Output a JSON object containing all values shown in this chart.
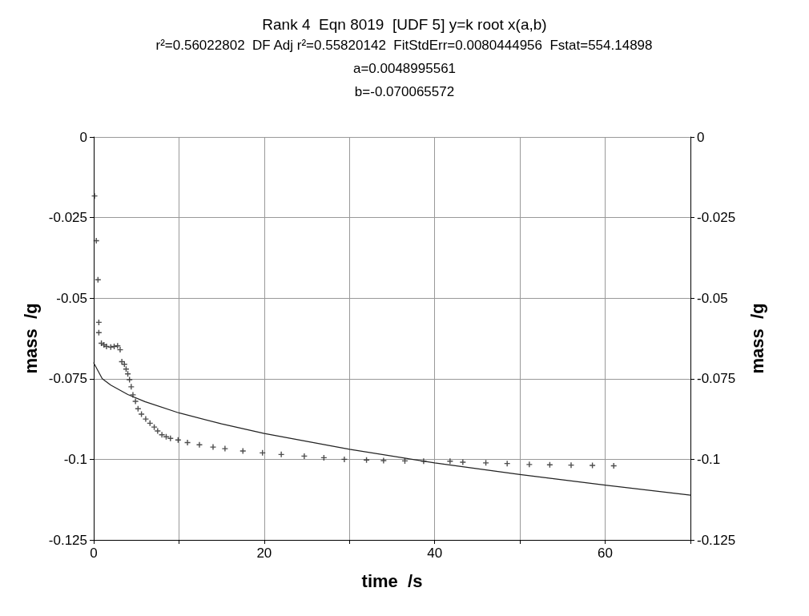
{
  "chart_data": {
    "type": "scatter",
    "title": "Rank 4  Eqn 8019  [UDF 5] y=k root x(a,b)",
    "subtitle": "r²=0.56022802  DF Adj r²=0.55820142  FitStdErr=0.0080444956  Fstat=554.14898",
    "annotations": [
      "a=0.0048995561",
      "b=-0.070065572"
    ],
    "xlabel": "time  /s",
    "ylabel": "mass  /g",
    "y2label": "mass  /g",
    "xlim": [
      0,
      70
    ],
    "xticks": [
      0,
      {
        "value": 10,
        "label": null
      },
      20,
      {
        "value": 30,
        "label": null
      },
      40,
      {
        "value": 50,
        "label": null
      },
      60,
      {
        "value": 70,
        "label": null
      }
    ],
    "ylim": [
      -0.125,
      0
    ],
    "yticks": [
      -0.125,
      -0.1,
      -0.075,
      -0.05,
      -0.025,
      0
    ],
    "y2lim": [
      -0.125,
      0
    ],
    "y2ticks": [
      -0.125,
      -0.1,
      -0.075,
      -0.05,
      -0.025,
      0
    ],
    "grid": true,
    "series": [
      {
        "marker": "cross",
        "color": "#222222",
        "x": [
          0.1,
          0.3,
          0.5,
          0.6,
          0.6,
          0.9,
          1.2,
          1.5,
          2.0,
          2.4,
          2.8,
          3.1,
          3.3,
          3.6,
          3.8,
          4.0,
          4.2,
          4.4,
          4.6,
          4.9,
          5.2,
          5.6,
          6.1,
          6.6,
          7.1,
          7.5,
          8.0,
          8.5,
          9.0,
          9.9,
          11.0,
          12.4,
          14.0,
          15.4,
          17.5,
          19.8,
          22.0,
          24.7,
          27.0,
          29.4,
          32.0,
          34.0,
          36.5,
          38.7,
          41.8,
          43.3,
          46.0,
          48.5,
          51.1,
          53.5,
          56.0,
          58.5,
          61.0
        ],
        "values": [
          -0.0183,
          -0.0322,
          -0.0443,
          -0.0575,
          -0.0607,
          -0.064,
          -0.0645,
          -0.065,
          -0.0652,
          -0.065,
          -0.0648,
          -0.066,
          -0.0697,
          -0.0705,
          -0.072,
          -0.0735,
          -0.0753,
          -0.0775,
          -0.08,
          -0.082,
          -0.0843,
          -0.086,
          -0.0875,
          -0.0888,
          -0.09,
          -0.0912,
          -0.0924,
          -0.093,
          -0.0935,
          -0.094,
          -0.0948,
          -0.0955,
          -0.0962,
          -0.0967,
          -0.0974,
          -0.098,
          -0.0985,
          -0.099,
          -0.0995,
          -0.1,
          -0.1002,
          -0.1004,
          -0.1005,
          -0.1006,
          -0.1006,
          -0.1009,
          -0.1011,
          -0.1013,
          -0.1016,
          -0.1017,
          -0.1018,
          -0.1019,
          -0.102
        ]
      },
      {
        "type": "line",
        "marker": "none",
        "line_style": "solid",
        "color": "#222222",
        "x": [
          0,
          1,
          2,
          4,
          6,
          10,
          15,
          20,
          30,
          40,
          50,
          60,
          70
        ],
        "values": [
          -0.0701,
          -0.075,
          -0.077,
          -0.0799,
          -0.0821,
          -0.0856,
          -0.089,
          -0.092,
          -0.0969,
          -0.1011,
          -0.1047,
          -0.108,
          -0.1111
        ]
      }
    ]
  }
}
